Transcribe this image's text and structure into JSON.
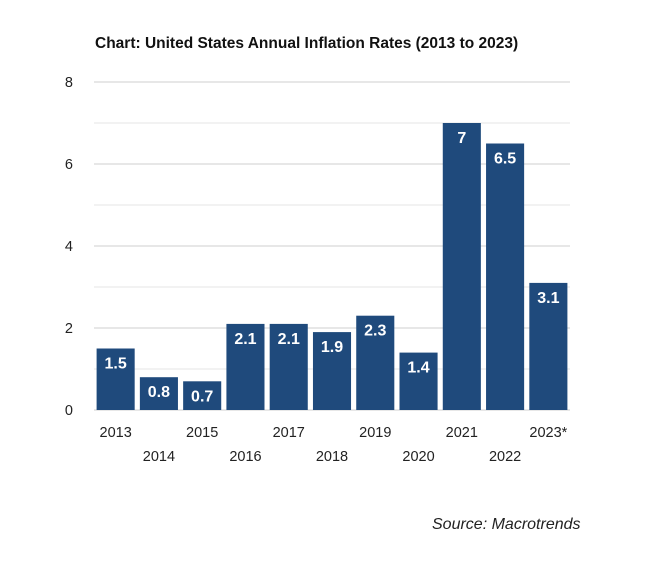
{
  "chart_data": {
    "type": "bar",
    "title": "Chart: United States Annual Inflation Rates (2013 to 2023)",
    "categories": [
      "2013",
      "2014",
      "2015",
      "2016",
      "2017",
      "2018",
      "2019",
      "2020",
      "2021",
      "2022",
      "2023*"
    ],
    "values": [
      1.5,
      0.8,
      0.7,
      2.1,
      2.1,
      1.9,
      2.3,
      1.4,
      7,
      6.5,
      3.1
    ],
    "value_labels": [
      "1.5",
      "0.8",
      "0.7",
      "2.1",
      "2.1",
      "1.9",
      "2.3",
      "1.4",
      "7",
      "6.5",
      "3.1"
    ],
    "xlabel": "",
    "ylabel": "",
    "ylim": [
      0,
      8
    ],
    "yticks": [
      "0",
      "2",
      "4",
      "6",
      "8"
    ],
    "grid": true,
    "bar_color": "#1f4a7c",
    "source": "Source: Macrotrends"
  }
}
